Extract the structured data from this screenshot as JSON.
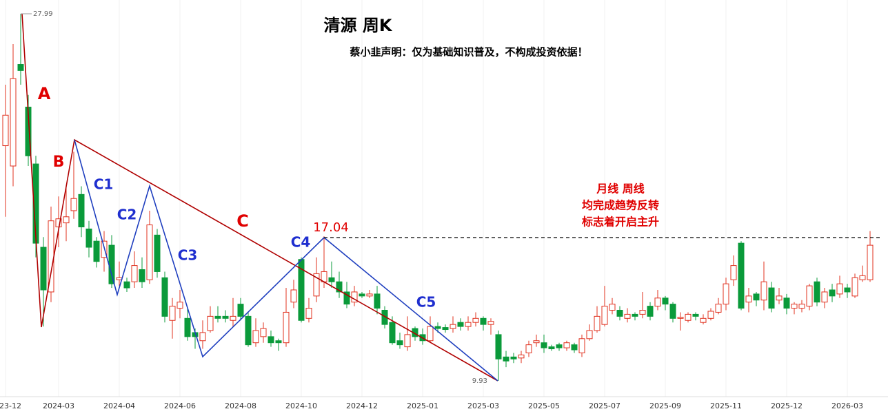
{
  "chart_data": {
    "type": "candlestick",
    "title": "清源 周K",
    "subtitle": "蔡小韭声明：仅为基础知识普及，不构成投资依据！",
    "annotations": [
      "A",
      "B",
      "C",
      "C1",
      "C2",
      "C3",
      "C4",
      "C5",
      "17.04",
      "27.99",
      "9.93"
    ],
    "note": [
      "月线 周线",
      "均完成趋势反转",
      "标志着开启主升"
    ],
    "up_color": "#e0301e",
    "down_color": "#0a9a3a",
    "ylim": [
      9.18,
      28.67
    ],
    "grid": true,
    "categories": [
      "2023-12",
      null,
      null,
      null,
      null,
      null,
      null,
      "2024-03",
      null,
      null,
      null,
      null,
      null,
      null,
      null,
      "2024-04",
      null,
      null,
      null,
      null,
      null,
      null,
      null,
      "2024-06",
      null,
      null,
      null,
      null,
      null,
      null,
      null,
      "2024-08",
      null,
      null,
      null,
      null,
      null,
      null,
      null,
      "2024-10",
      null,
      null,
      null,
      null,
      null,
      null,
      null,
      "2024-12",
      null,
      null,
      null,
      null,
      null,
      null,
      null,
      "2025-01",
      null,
      null,
      null,
      null,
      null,
      null,
      null,
      "2025-03",
      null,
      null,
      null,
      null,
      null,
      null,
      null,
      "2025-05",
      null,
      null,
      null,
      null,
      null,
      null,
      null,
      "2025-07",
      null,
      null,
      null,
      null,
      null,
      null,
      null,
      "2025-09",
      null,
      null,
      null,
      null,
      null,
      null,
      null,
      "2025-11",
      null,
      null,
      null,
      null,
      null,
      null,
      null,
      "2025-12",
      null,
      null,
      null,
      null,
      null,
      null,
      null,
      "2026-03",
      null,
      null,
      null
    ],
    "open": [
      21.5,
      20.5,
      25.5,
      23.4,
      20.6,
      16.5,
      14.3,
      17.5,
      17.7,
      18.3,
      19.1,
      17.4,
      16.8,
      16.0,
      16.6,
      14.9,
      14.8,
      14.8,
      15.4,
      14.9,
      17.1,
      15.0,
      12.9,
      13.5,
      13.0,
      12.3,
      11.9,
      12.4,
      13.1,
      13.1,
      12.9,
      13.7,
      13.1,
      11.8,
      12.1,
      12.1,
      11.9,
      11.8,
      13.8,
      15.9,
      13.0,
      14.1,
      14.8,
      15.0,
      14.8,
      14.3,
      13.8,
      14.2,
      14.1,
      14.2,
      13.4,
      12.8,
      11.9,
      11.6,
      12.5,
      12.2,
      11.9,
      12.6,
      12.55,
      12.5,
      12.8,
      12.6,
      12.8,
      13.0,
      12.7,
      12.2,
      11.1,
      11.1,
      11.05,
      11.3,
      11.8,
      11.8,
      11.6,
      11.7,
      11.55,
      11.7,
      11.3,
      12.0,
      12.4,
      12.7,
      13.4,
      13.4,
      13.0,
      13.2,
      13.2,
      13.6,
      13.6,
      14.0,
      13.7,
      13.0,
      12.9,
      13.2,
      12.8,
      13.0,
      13.3,
      13.7,
      14.9,
      16.7,
      13.8,
      14.2,
      13.9,
      14.5,
      13.9,
      14.0,
      13.5,
      13.5,
      13.6,
      14.8,
      13.8,
      14.4,
      14.2,
      14.5,
      14.1,
      14.9,
      14.9
    ],
    "close": [
      23.0,
      24.8,
      25.2,
      21.0,
      16.7,
      14.4,
      17.8,
      17.9,
      18.0,
      18.9,
      17.5,
      16.5,
      15.8,
      16.8,
      14.7,
      15.0,
      14.5,
      15.6,
      14.8,
      17.6,
      15.3,
      13.1,
      13.6,
      13.8,
      12.1,
      12.1,
      12.3,
      13.1,
      13.0,
      13.0,
      13.1,
      13.1,
      11.7,
      12.4,
      12.5,
      11.8,
      11.8,
      13.3,
      14.4,
      12.9,
      13.5,
      15.2,
      15.3,
      14.8,
      14.3,
      13.7,
      14.3,
      14.1,
      14.2,
      13.5,
      12.7,
      11.8,
      11.7,
      12.2,
      12.1,
      11.9,
      12.6,
      12.5,
      12.45,
      12.7,
      12.6,
      12.8,
      13.0,
      12.7,
      12.85,
      11.0,
      10.9,
      11.0,
      11.2,
      11.7,
      11.9,
      11.55,
      11.5,
      11.55,
      11.8,
      11.45,
      12.0,
      12.4,
      13.1,
      13.6,
      13.7,
      13.1,
      13.2,
      13.1,
      13.4,
      13.1,
      14.0,
      13.7,
      13.0,
      13.05,
      13.2,
      13.1,
      13.0,
      13.35,
      13.7,
      14.7,
      15.6,
      13.5,
      14.1,
      13.9,
      14.8,
      13.5,
      14.1,
      13.5,
      13.7,
      13.7,
      14.6,
      13.8,
      14.3,
      14.1,
      14.7,
      14.3,
      15.0,
      15.1,
      16.6
    ],
    "high": [
      24.5,
      26.5,
      27.99,
      24.0,
      21.0,
      17.0,
      18.5,
      19.0,
      19.5,
      21.2,
      19.5,
      17.8,
      17.0,
      17.3,
      17.1,
      15.8,
      15.0,
      16.3,
      16.0,
      18.3,
      17.4,
      15.3,
      14.0,
      14.4,
      13.5,
      12.5,
      12.9,
      13.6,
      13.6,
      13.4,
      14.0,
      14.0,
      13.3,
      13.0,
      12.8,
      12.4,
      12.0,
      14.5,
      14.9,
      16.0,
      14.0,
      16.0,
      17.04,
      15.8,
      15.3,
      14.8,
      14.6,
      14.3,
      14.4,
      14.6,
      13.6,
      13.1,
      12.3,
      13.1,
      12.6,
      12.5,
      13.1,
      12.8,
      12.7,
      13.1,
      13.0,
      13.1,
      13.3,
      13.1,
      13.0,
      12.4,
      11.4,
      11.3,
      11.4,
      11.9,
      12.2,
      12.2,
      11.7,
      11.8,
      11.9,
      11.8,
      12.2,
      12.7,
      13.6,
      14.6,
      14.0,
      13.6,
      13.5,
      13.3,
      14.3,
      13.8,
      14.4,
      14.1,
      13.8,
      13.3,
      13.3,
      13.3,
      13.2,
      13.5,
      14.0,
      15.0,
      16.1,
      16.8,
      14.5,
      14.3,
      15.8,
      14.8,
      14.5,
      14.2,
      13.8,
      13.9,
      14.7,
      15.0,
      14.5,
      14.7,
      15.1,
      14.7,
      15.2,
      15.6,
      17.3
    ],
    "low": [
      18.0,
      19.5,
      24.5,
      20.5,
      16.0,
      12.6,
      13.8,
      16.5,
      16.8,
      17.9,
      17.0,
      16.0,
      15.5,
      15.3,
      14.5,
      14.6,
      14.3,
      14.5,
      14.5,
      14.7,
      15.0,
      12.8,
      12.0,
      13.0,
      11.9,
      11.5,
      11.5,
      12.3,
      12.8,
      12.8,
      12.6,
      12.9,
      11.6,
      11.6,
      11.8,
      11.6,
      11.4,
      11.6,
      13.5,
      12.8,
      12.8,
      13.8,
      14.5,
      14.5,
      14.0,
      13.5,
      13.6,
      14.0,
      14.0,
      13.2,
      12.5,
      11.7,
      11.5,
      11.4,
      11.9,
      11.7,
      11.8,
      12.3,
      12.3,
      12.3,
      12.4,
      12.4,
      12.6,
      12.4,
      12.2,
      9.93,
      10.6,
      10.8,
      10.8,
      11.1,
      11.6,
      11.3,
      11.4,
      11.4,
      11.4,
      11.3,
      11.1,
      11.9,
      12.3,
      12.6,
      13.2,
      12.9,
      12.8,
      12.9,
      13.0,
      12.9,
      13.4,
      13.4,
      12.8,
      12.4,
      12.8,
      12.9,
      12.7,
      12.9,
      13.2,
      13.4,
      14.6,
      13.4,
      13.3,
      13.6,
      13.4,
      13.3,
      13.7,
      13.2,
      13.2,
      13.3,
      13.4,
      13.6,
      13.5,
      13.8,
      14.0,
      14.0,
      14.0,
      14.8,
      14.8
    ]
  }
}
